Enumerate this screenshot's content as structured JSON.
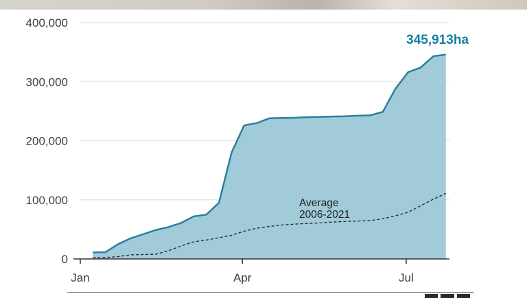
{
  "chart_data": {
    "type": "area",
    "title": "",
    "xlabel": "",
    "ylabel": "",
    "ylim": [
      0,
      400000
    ],
    "y_ticks": [
      "400,000",
      "300,000",
      "200,000",
      "100,000",
      "0"
    ],
    "y_tick_values": [
      400000,
      300000,
      200000,
      100000,
      0
    ],
    "x_ticks": [
      "Jan",
      "Apr",
      "Jul"
    ],
    "x_tick_dates": [
      "2022-01-01",
      "2022-04-01",
      "2022-07-01"
    ],
    "xlim": [
      "2022-01-01",
      "2022-07-20"
    ],
    "grid": "horizontal",
    "end_label": "345,913ha",
    "series": [
      {
        "values": [
          {
            "x": "2022-01-08",
            "y": 11000
          },
          {
            "x": "2022-01-15",
            "y": 11500
          },
          {
            "x": "2022-01-22",
            "y": 25000
          },
          {
            "x": "2022-01-29",
            "y": 35000
          },
          {
            "x": "2022-02-05",
            "y": 42000
          },
          {
            "x": "2022-02-12",
            "y": 49000
          },
          {
            "x": "2022-02-19",
            "y": 54000
          },
          {
            "x": "2022-02-26",
            "y": 61000
          },
          {
            "x": "2022-03-05",
            "y": 72000
          },
          {
            "x": "2022-03-12",
            "y": 75000
          },
          {
            "x": "2022-03-19",
            "y": 95000
          },
          {
            "x": "2022-03-26",
            "y": 180000
          },
          {
            "x": "2022-04-02",
            "y": 226000
          },
          {
            "x": "2022-04-09",
            "y": 230000
          },
          {
            "x": "2022-04-16",
            "y": 238000
          },
          {
            "x": "2022-04-23",
            "y": 238500
          },
          {
            "x": "2022-04-30",
            "y": 239000
          },
          {
            "x": "2022-05-07",
            "y": 240000
          },
          {
            "x": "2022-05-14",
            "y": 240500
          },
          {
            "x": "2022-05-21",
            "y": 241000
          },
          {
            "x": "2022-05-28",
            "y": 241500
          },
          {
            "x": "2022-06-04",
            "y": 242500
          },
          {
            "x": "2022-06-11",
            "y": 243000
          },
          {
            "x": "2022-06-18",
            "y": 249000
          },
          {
            "x": "2022-06-25",
            "y": 288000
          },
          {
            "x": "2022-07-02",
            "y": 316000
          },
          {
            "x": "2022-07-09",
            "y": 324000
          },
          {
            "x": "2022-07-16",
            "y": 343000
          },
          {
            "x": "2022-07-23",
            "y": 345913
          }
        ]
      },
      {
        "name": "Average 2006-2021",
        "name_lines": [
          "Average",
          "2006-2021"
        ],
        "values": [
          {
            "x": "2022-01-08",
            "y": 2000
          },
          {
            "x": "2022-01-15",
            "y": 2500
          },
          {
            "x": "2022-01-22",
            "y": 4000
          },
          {
            "x": "2022-01-29",
            "y": 7000
          },
          {
            "x": "2022-02-05",
            "y": 7500
          },
          {
            "x": "2022-02-12",
            "y": 8000
          },
          {
            "x": "2022-02-19",
            "y": 14000
          },
          {
            "x": "2022-02-26",
            "y": 22000
          },
          {
            "x": "2022-03-05",
            "y": 29000
          },
          {
            "x": "2022-03-12",
            "y": 32000
          },
          {
            "x": "2022-03-19",
            "y": 36000
          },
          {
            "x": "2022-03-26",
            "y": 40000
          },
          {
            "x": "2022-04-02",
            "y": 47000
          },
          {
            "x": "2022-04-09",
            "y": 52000
          },
          {
            "x": "2022-04-16",
            "y": 55000
          },
          {
            "x": "2022-04-23",
            "y": 57500
          },
          {
            "x": "2022-04-30",
            "y": 59000
          },
          {
            "x": "2022-05-07",
            "y": 60000
          },
          {
            "x": "2022-05-14",
            "y": 61000
          },
          {
            "x": "2022-05-21",
            "y": 62500
          },
          {
            "x": "2022-05-28",
            "y": 63500
          },
          {
            "x": "2022-06-04",
            "y": 64000
          },
          {
            "x": "2022-06-11",
            "y": 65000
          },
          {
            "x": "2022-06-18",
            "y": 68000
          },
          {
            "x": "2022-06-25",
            "y": 73000
          },
          {
            "x": "2022-07-02",
            "y": 79000
          },
          {
            "x": "2022-07-09",
            "y": 90000
          },
          {
            "x": "2022-07-16",
            "y": 101000
          },
          {
            "x": "2022-07-23",
            "y": 111000
          }
        ]
      }
    ]
  },
  "colors": {
    "area_fill": "#a2cbd9",
    "line": "#2a7f9e",
    "average_line": "#222222",
    "grid": "#d9d9d9",
    "axis": "#333333",
    "end_label": "#1380a1"
  }
}
